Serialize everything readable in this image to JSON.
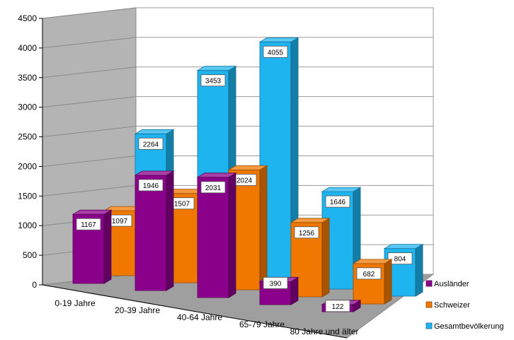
{
  "chart_data": {
    "type": "bar",
    "title": "",
    "xlabel": "",
    "ylabel": "",
    "ylim": [
      0,
      4500
    ],
    "yticks": [
      0,
      500,
      1000,
      1500,
      2000,
      2500,
      3000,
      3500,
      4000,
      4500
    ],
    "categories": [
      "0-19 Jahre",
      "20-39 Jahre",
      "40-64 Jahre",
      "65-79 Jahre",
      "80 Jahre und älter"
    ],
    "series": [
      {
        "name": "Ausländer",
        "values": [
          1167,
          1946,
          2031,
          390,
          122
        ],
        "color": "#8B008B"
      },
      {
        "name": "Schweizer",
        "values": [
          1097,
          1507,
          2024,
          1256,
          682
        ],
        "color": "#F07800"
      },
      {
        "name": "Gesamtbevölkerung",
        "values": [
          2264,
          3453,
          4055,
          1646,
          804
        ],
        "color": "#1EB4F0"
      }
    ],
    "grid": true,
    "legend": "right",
    "style": "3d-clustered-depth"
  }
}
